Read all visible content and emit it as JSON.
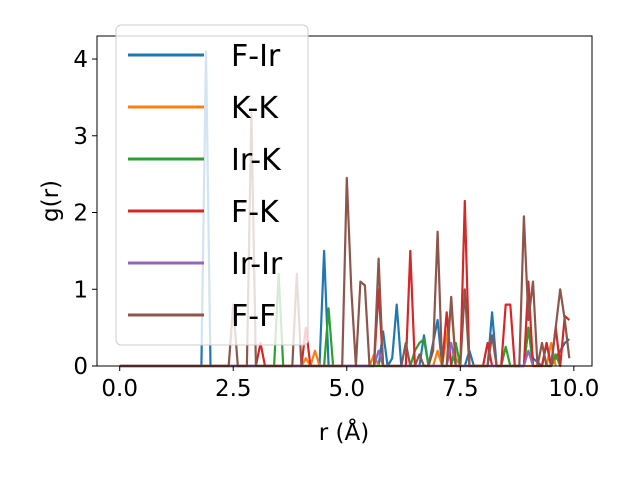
{
  "chart_data": {
    "type": "line",
    "xlabel": "r (Å)",
    "ylabel": "g(r)",
    "xlim": [
      -0.5,
      10.4
    ],
    "ylim": [
      0,
      4.3
    ],
    "xticks": [
      "0.0",
      "2.5",
      "5.0",
      "7.5",
      "10.0"
    ],
    "xtick_values": [
      0,
      2.5,
      5,
      7.5,
      10
    ],
    "yticks": [
      "0",
      "1",
      "2",
      "3",
      "4"
    ],
    "ytick_values": [
      0,
      1,
      2,
      3,
      4
    ],
    "grid": false,
    "legend_position": "top-left",
    "series": [
      {
        "name": "F-Ir",
        "color": "#1f77b4",
        "points": [
          [
            0,
            0
          ],
          [
            1.8,
            0
          ],
          [
            1.9,
            4.1
          ],
          [
            2.0,
            0
          ],
          [
            4.4,
            0
          ],
          [
            4.5,
            1.5
          ],
          [
            4.6,
            0
          ],
          [
            5.7,
            0
          ],
          [
            5.8,
            0.45
          ],
          [
            5.9,
            0
          ],
          [
            6.0,
            0.1
          ],
          [
            6.1,
            0.8
          ],
          [
            6.2,
            0
          ],
          [
            6.6,
            0
          ],
          [
            6.7,
            0.4
          ],
          [
            6.8,
            0
          ],
          [
            7.0,
            0.6
          ],
          [
            7.1,
            0
          ],
          [
            7.6,
            0
          ],
          [
            7.7,
            0.2
          ],
          [
            7.8,
            0
          ],
          [
            8.1,
            0
          ],
          [
            8.2,
            0.7
          ],
          [
            8.3,
            0
          ],
          [
            8.9,
            0
          ],
          [
            9.0,
            0.5
          ],
          [
            9.1,
            0.1
          ],
          [
            9.3,
            0
          ],
          [
            9.4,
            0.3
          ],
          [
            9.5,
            0
          ],
          [
            9.8,
            0.3
          ],
          [
            9.9,
            0.35
          ]
        ]
      },
      {
        "name": "K-K",
        "color": "#ff7f0e",
        "points": [
          [
            0,
            0
          ],
          [
            4.0,
            0
          ],
          [
            4.1,
            0.1
          ],
          [
            4.2,
            0
          ],
          [
            4.3,
            0.2
          ],
          [
            4.4,
            0
          ],
          [
            5.5,
            0
          ],
          [
            5.6,
            0.15
          ],
          [
            5.7,
            0
          ],
          [
            6.9,
            0
          ],
          [
            7.0,
            0.2
          ],
          [
            7.1,
            0
          ],
          [
            7.3,
            0.75
          ],
          [
            7.4,
            0.1
          ],
          [
            7.5,
            0
          ],
          [
            9.4,
            0
          ],
          [
            9.5,
            0.3
          ],
          [
            9.6,
            0
          ]
        ]
      },
      {
        "name": "Ir-K",
        "color": "#2ca02c",
        "points": [
          [
            0,
            0
          ],
          [
            3.4,
            0
          ],
          [
            3.5,
            1.2
          ],
          [
            3.6,
            0
          ],
          [
            4.5,
            0
          ],
          [
            4.6,
            0.75
          ],
          [
            4.7,
            0
          ],
          [
            6.4,
            0
          ],
          [
            6.5,
            0.2
          ],
          [
            6.6,
            0.3
          ],
          [
            6.7,
            0.35
          ],
          [
            6.8,
            0
          ],
          [
            7.3,
            0
          ],
          [
            7.4,
            0.3
          ],
          [
            7.5,
            0
          ],
          [
            8.4,
            0
          ],
          [
            8.5,
            0.25
          ],
          [
            8.6,
            0
          ],
          [
            8.9,
            0
          ],
          [
            9.0,
            0.5
          ],
          [
            9.1,
            0
          ],
          [
            9.5,
            0
          ],
          [
            9.6,
            0.15
          ],
          [
            9.7,
            0
          ]
        ]
      },
      {
        "name": "F-K",
        "color": "#d62728",
        "points": [
          [
            0,
            0
          ],
          [
            3.0,
            0
          ],
          [
            3.1,
            0.3
          ],
          [
            3.2,
            0
          ],
          [
            4.0,
            0
          ],
          [
            4.1,
            0.5
          ],
          [
            4.2,
            0
          ],
          [
            5.6,
            0
          ],
          [
            5.7,
            1.0
          ],
          [
            5.8,
            0
          ],
          [
            6.3,
            0
          ],
          [
            6.4,
            1.5
          ],
          [
            6.5,
            0
          ],
          [
            7.1,
            0
          ],
          [
            7.2,
            0.7
          ],
          [
            7.3,
            0
          ],
          [
            7.5,
            0
          ],
          [
            7.6,
            2.15
          ],
          [
            7.7,
            0
          ],
          [
            8.0,
            0
          ],
          [
            8.1,
            0.3
          ],
          [
            8.2,
            0
          ],
          [
            8.4,
            0
          ],
          [
            8.5,
            0.8
          ],
          [
            8.6,
            0.8
          ],
          [
            8.7,
            0
          ],
          [
            8.9,
            0
          ],
          [
            9.0,
            1.1
          ],
          [
            9.1,
            0
          ],
          [
            9.3,
            0
          ],
          [
            9.4,
            0.3
          ],
          [
            9.5,
            0
          ],
          [
            9.6,
            0.5
          ],
          [
            9.7,
            0
          ],
          [
            9.8,
            0.65
          ],
          [
            9.9,
            0.6
          ]
        ]
      },
      {
        "name": "Ir-Ir",
        "color": "#9467bd",
        "points": [
          [
            0,
            0
          ],
          [
            5.6,
            0
          ],
          [
            5.7,
            0.2
          ],
          [
            5.8,
            0
          ],
          [
            7.2,
            0
          ],
          [
            7.3,
            0.3
          ],
          [
            7.4,
            0
          ],
          [
            8.9,
            0
          ],
          [
            9.0,
            0.2
          ],
          [
            9.1,
            0
          ]
        ]
      },
      {
        "name": "F-F",
        "color": "#8c564b",
        "points": [
          [
            0,
            0
          ],
          [
            2.4,
            0
          ],
          [
            2.5,
            0.8
          ],
          [
            2.6,
            0
          ],
          [
            2.8,
            0
          ],
          [
            2.9,
            3.3
          ],
          [
            3.0,
            0
          ],
          [
            3.8,
            0
          ],
          [
            3.9,
            1.2
          ],
          [
            4.0,
            0
          ],
          [
            4.9,
            0
          ],
          [
            5.0,
            2.45
          ],
          [
            5.1,
            1.0
          ],
          [
            5.2,
            0
          ],
          [
            5.3,
            1.1
          ],
          [
            5.4,
            1.05
          ],
          [
            5.5,
            0
          ],
          [
            5.6,
            0
          ],
          [
            5.7,
            1.4
          ],
          [
            5.8,
            0
          ],
          [
            6.2,
            0
          ],
          [
            6.3,
            0.3
          ],
          [
            6.4,
            0
          ],
          [
            6.5,
            0
          ],
          [
            6.6,
            0.15
          ],
          [
            6.7,
            0
          ],
          [
            6.8,
            0
          ],
          [
            6.9,
            0.2
          ],
          [
            7.0,
            1.75
          ],
          [
            7.1,
            0
          ],
          [
            7.2,
            0
          ],
          [
            7.3,
            0.9
          ],
          [
            7.4,
            0
          ],
          [
            7.5,
            0
          ],
          [
            7.6,
            1.0
          ],
          [
            7.7,
            0
          ],
          [
            8.1,
            0
          ],
          [
            8.2,
            0.4
          ],
          [
            8.3,
            0
          ],
          [
            8.8,
            0
          ],
          [
            8.9,
            1.95
          ],
          [
            9.0,
            0.6
          ],
          [
            9.1,
            1.1
          ],
          [
            9.2,
            0
          ],
          [
            9.3,
            0.3
          ],
          [
            9.4,
            0
          ],
          [
            9.5,
            0
          ],
          [
            9.6,
            0.5
          ],
          [
            9.7,
            1.0
          ],
          [
            9.8,
            0.6
          ],
          [
            9.9,
            0.1
          ]
        ]
      }
    ]
  }
}
